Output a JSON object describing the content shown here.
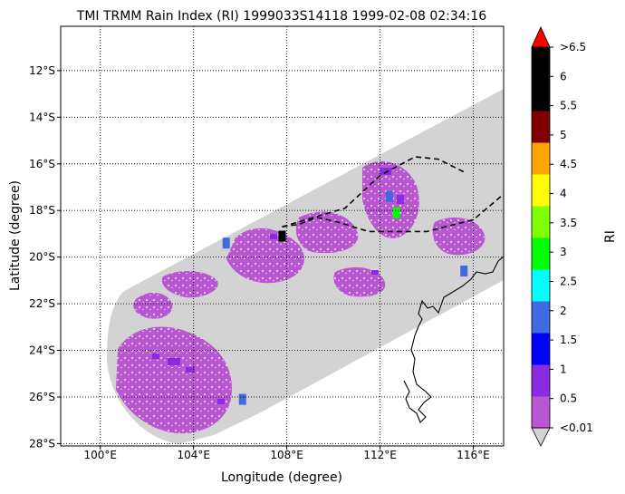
{
  "chart_data": {
    "type": "heatmap",
    "title": "TMI TRMM Rain Index (RI) 1999033S14118 1999-02-08 02:34:16",
    "xlabel": "Longitude (degree)",
    "ylabel": "Latitude (degree)",
    "colorbar_label": "RI",
    "xlim": [
      98.3,
      117.3
    ],
    "ylim": [
      -28.1,
      -10.1
    ],
    "xticks": [
      {
        "value": 100,
        "label": "100°E"
      },
      {
        "value": 104,
        "label": "104°E"
      },
      {
        "value": 108,
        "label": "108°E"
      },
      {
        "value": 112,
        "label": "112°E"
      },
      {
        "value": 116,
        "label": "116°E"
      }
    ],
    "yticks": [
      {
        "value": -12,
        "label": "12°S"
      },
      {
        "value": -14,
        "label": "14°S"
      },
      {
        "value": -16,
        "label": "16°S"
      },
      {
        "value": -18,
        "label": "18°S"
      },
      {
        "value": -20,
        "label": "20°S"
      },
      {
        "value": -22,
        "label": "22°S"
      },
      {
        "value": -24,
        "label": "24°S"
      },
      {
        "value": -26,
        "label": "26°S"
      },
      {
        "value": -28,
        "label": "28°S"
      }
    ],
    "grid": true,
    "colorbar": {
      "ticks": [
        "<0.01",
        "0.5",
        "1",
        "1.5",
        "2",
        "2.5",
        "3",
        "3.5",
        "4",
        "4.5",
        "5",
        "5.5",
        "6",
        ">6.5"
      ],
      "under_color": "#d3d3d3",
      "over_color": "#ff0000",
      "colors": [
        "#ba55d3",
        "#8a2be2",
        "#0000ff",
        "#4169e1",
        "#00ffff",
        "#00ff00",
        "#7fff00",
        "#ffff00",
        "#ffa500",
        "#800000",
        "#000000",
        "#000000"
      ]
    },
    "swath_edges": {
      "lower": [
        [
          101.0,
          -24.3
        ],
        [
          103.5,
          -27.5
        ],
        [
          106.0,
          -28.0
        ],
        [
          117.3,
          -21.2
        ]
      ],
      "upper": [
        [
          102.0,
          -21.5
        ],
        [
          117.3,
          -12.8
        ]
      ]
    },
    "track": [
      [
        107.8,
        -18.7
      ],
      [
        108.5,
        -18.6
      ],
      [
        109.3,
        -18.3
      ],
      [
        110.2,
        -18.5
      ],
      [
        111.5,
        -18.9
      ],
      [
        114.0,
        -18.9
      ],
      [
        116.0,
        -18.4
      ],
      [
        117.3,
        -17.3
      ]
    ],
    "track_loop": [
      [
        107.8,
        -18.7
      ],
      [
        110.5,
        -17.9
      ],
      [
        112.0,
        -16.5
      ],
      [
        113.5,
        -15.7
      ],
      [
        114.5,
        -15.8
      ],
      [
        115.7,
        -16.4
      ]
    ],
    "rain_cells": [
      {
        "lon": 112.4,
        "lat": -17.4,
        "ri": 1.5
      },
      {
        "lon": 112.7,
        "lat": -18.1,
        "ri": 2.5
      },
      {
        "lon": 105.4,
        "lat": -19.4,
        "ri": 1.5
      },
      {
        "lon": 107.8,
        "lat": -19.1,
        "ri": 5.0
      },
      {
        "lon": 115.6,
        "lat": -20.6,
        "ri": 1.5
      },
      {
        "lon": 106.1,
        "lat": -26.1,
        "ri": 1.5
      }
    ]
  }
}
